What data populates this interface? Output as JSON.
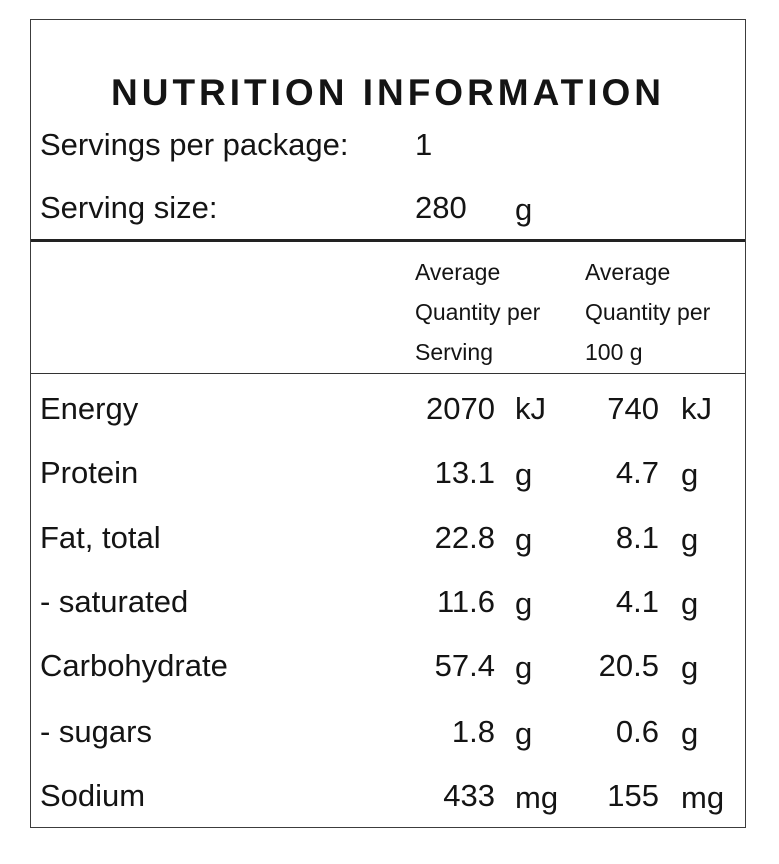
{
  "title": "NUTRITION INFORMATION",
  "servings_per_package": {
    "label": "Servings per package:",
    "value": "1"
  },
  "serving_size": {
    "label": "Serving size:",
    "value": "280",
    "unit": "g"
  },
  "column_headers": [
    {
      "lines": [
        "Average",
        "Quantity per",
        "Serving"
      ]
    },
    {
      "lines": [
        "Average",
        "Quantity per",
        "100 g"
      ]
    }
  ],
  "rows": [
    {
      "label": "Energy",
      "per_serving": "2070",
      "per_serving_unit": "kJ",
      "per_100g": "740",
      "per_100g_unit": "kJ"
    },
    {
      "label": "Protein",
      "per_serving": "13.1",
      "per_serving_unit": "g",
      "per_100g": "4.7",
      "per_100g_unit": "g"
    },
    {
      "label": "Fat, total",
      "per_serving": "22.8",
      "per_serving_unit": "g",
      "per_100g": "8.1",
      "per_100g_unit": "g"
    },
    {
      "label": "- saturated",
      "per_serving": "11.6",
      "per_serving_unit": "g",
      "per_100g": "4.1",
      "per_100g_unit": "g"
    },
    {
      "label": "Carbohydrate",
      "per_serving": "57.4",
      "per_serving_unit": "g",
      "per_100g": "20.5",
      "per_100g_unit": "g"
    },
    {
      "label": "- sugars",
      "per_serving": "1.8",
      "per_serving_unit": "g",
      "per_100g": "0.6",
      "per_100g_unit": "g"
    },
    {
      "label": "Sodium",
      "per_serving": "433",
      "per_serving_unit": "mg",
      "per_100g": "155",
      "per_100g_unit": "mg"
    }
  ]
}
